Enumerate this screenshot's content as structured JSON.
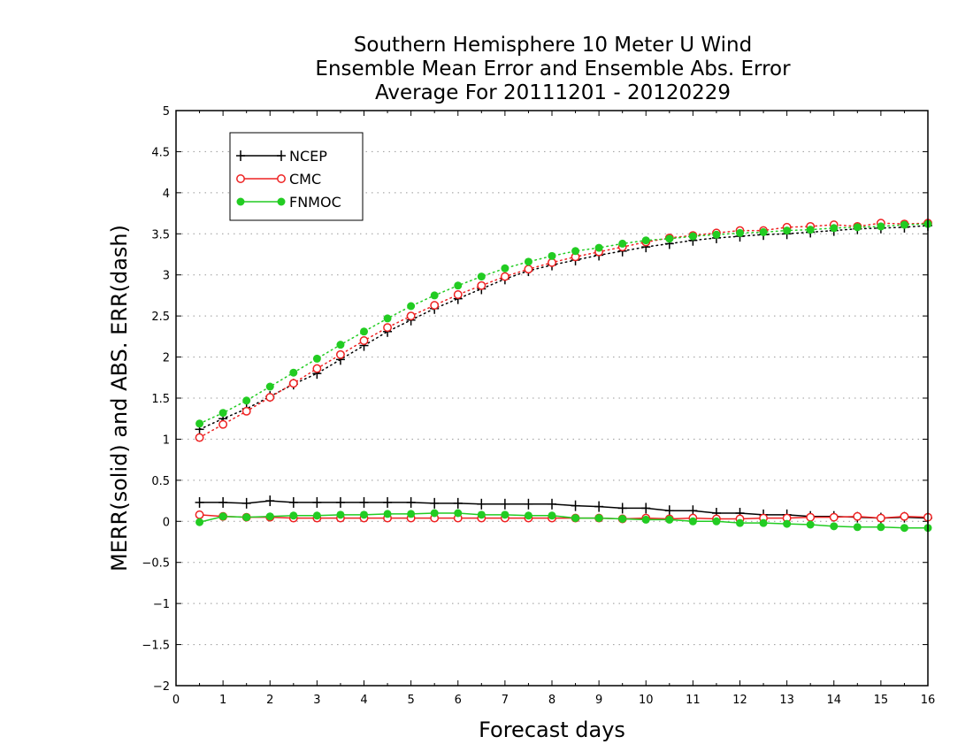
{
  "chart_data": {
    "type": "line",
    "title": [
      "Southern Hemisphere 10 Meter U Wind",
      "Ensemble Mean Error and Ensemble Abs. Error",
      "Average For 20111201 - 20120229"
    ],
    "xlabel": "Forecast days",
    "ylabel": "MERR(solid) and ABS. ERR(dash)",
    "xlim": [
      0,
      16
    ],
    "ylim": [
      -2,
      5
    ],
    "xticks": [
      "0",
      "1",
      "2",
      "3",
      "4",
      "5",
      "6",
      "7",
      "8",
      "9",
      "10",
      "11",
      "12",
      "13",
      "14",
      "15",
      "16"
    ],
    "yticks": [
      "5",
      "4.5",
      "4",
      "3.5",
      "3",
      "2.5",
      "2",
      "1.5",
      "1",
      "0.5",
      "0",
      "−0.5",
      "−1",
      "−1.5",
      "−2"
    ],
    "grid": true,
    "legend_position": "top-left",
    "x": [
      0.5,
      1.0,
      1.5,
      2.0,
      2.5,
      3.0,
      3.5,
      4.0,
      4.5,
      5.0,
      5.5,
      6.0,
      6.5,
      7.0,
      7.5,
      8.0,
      8.5,
      9.0,
      9.5,
      10.0,
      10.5,
      11.0,
      11.5,
      12.0,
      12.5,
      13.0,
      13.5,
      14.0,
      14.5,
      15.0,
      15.5,
      16.0
    ],
    "series": [
      {
        "name": "NCEP",
        "color": "#000000",
        "marker": "plus",
        "merr": [
          0.23,
          0.23,
          0.22,
          0.25,
          0.23,
          0.23,
          0.23,
          0.23,
          0.23,
          0.23,
          0.22,
          0.22,
          0.21,
          0.21,
          0.21,
          0.21,
          0.19,
          0.18,
          0.16,
          0.16,
          0.13,
          0.13,
          0.1,
          0.1,
          0.08,
          0.08,
          0.06,
          0.06,
          0.05,
          0.04,
          0.05,
          0.04
        ],
        "abs_err": [
          1.12,
          1.25,
          1.37,
          1.52,
          1.67,
          1.8,
          1.97,
          2.14,
          2.31,
          2.45,
          2.59,
          2.71,
          2.83,
          2.95,
          3.05,
          3.12,
          3.18,
          3.24,
          3.29,
          3.34,
          3.38,
          3.42,
          3.45,
          3.47,
          3.49,
          3.5,
          3.52,
          3.54,
          3.56,
          3.57,
          3.58,
          3.6
        ]
      },
      {
        "name": "CMC",
        "color": "#ee2222",
        "marker": "open-circle",
        "merr": [
          0.08,
          0.06,
          0.05,
          0.05,
          0.04,
          0.04,
          0.04,
          0.04,
          0.04,
          0.04,
          0.04,
          0.04,
          0.04,
          0.04,
          0.04,
          0.04,
          0.04,
          0.04,
          0.03,
          0.04,
          0.03,
          0.04,
          0.03,
          0.03,
          0.04,
          0.04,
          0.05,
          0.05,
          0.06,
          0.04,
          0.06,
          0.05
        ],
        "abs_err": [
          1.02,
          1.18,
          1.34,
          1.51,
          1.68,
          1.86,
          2.03,
          2.2,
          2.36,
          2.5,
          2.63,
          2.76,
          2.87,
          2.98,
          3.07,
          3.15,
          3.22,
          3.28,
          3.34,
          3.4,
          3.45,
          3.48,
          3.51,
          3.54,
          3.54,
          3.58,
          3.59,
          3.61,
          3.59,
          3.63,
          3.62,
          3.63
        ]
      },
      {
        "name": "FNMOC",
        "color": "#22cc22",
        "marker": "filled-circle",
        "merr": [
          -0.01,
          0.06,
          0.05,
          0.06,
          0.07,
          0.07,
          0.08,
          0.08,
          0.09,
          0.09,
          0.1,
          0.1,
          0.08,
          0.08,
          0.07,
          0.07,
          0.04,
          0.04,
          0.03,
          0.02,
          0.02,
          0.0,
          0.0,
          -0.02,
          -0.02,
          -0.03,
          -0.04,
          -0.06,
          -0.07,
          -0.07,
          -0.08,
          -0.08
        ],
        "abs_err": [
          1.19,
          1.32,
          1.47,
          1.64,
          1.81,
          1.98,
          2.15,
          2.31,
          2.47,
          2.62,
          2.75,
          2.87,
          2.98,
          3.08,
          3.16,
          3.23,
          3.29,
          3.33,
          3.38,
          3.42,
          3.44,
          3.47,
          3.49,
          3.51,
          3.52,
          3.54,
          3.55,
          3.57,
          3.58,
          3.59,
          3.61,
          3.62
        ]
      }
    ]
  }
}
